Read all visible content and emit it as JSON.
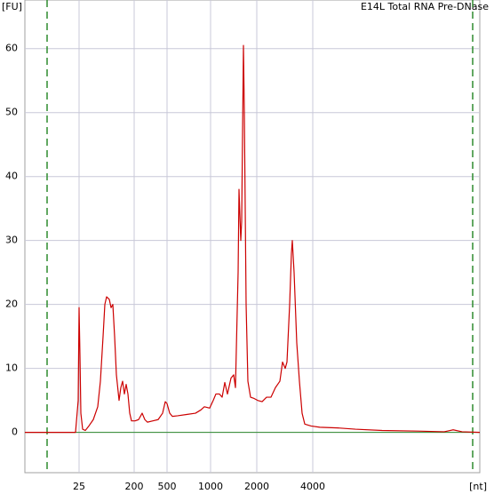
{
  "chart_data": {
    "type": "line",
    "title": "E14L Total RNA Pre-DNase",
    "ylabel": "[FU]",
    "xlabel": "[nt]",
    "xlim": [
      16.4,
      67.6
    ],
    "ylim": [
      -6.3,
      67.6
    ],
    "yticks": [
      0,
      10,
      20,
      30,
      40,
      50,
      60
    ],
    "xticks": [
      {
        "value": 22.5,
        "label": "25"
      },
      {
        "value": 28.7,
        "label": "200"
      },
      {
        "value": 32.4,
        "label": "500"
      },
      {
        "value": 37.3,
        "label": "1000"
      },
      {
        "value": 42.5,
        "label": "2000"
      },
      {
        "value": 48.8,
        "label": "4000"
      }
    ],
    "grid": true,
    "markers": [
      18.9,
      66.8
    ],
    "marker_color": "#2e8b2e",
    "x": [
      16.4,
      22.1,
      22.4,
      22.5,
      22.6,
      22.7,
      22.9,
      23.2,
      23.6,
      24.1,
      24.6,
      24.9,
      25.2,
      25.4,
      25.6,
      25.9,
      26.1,
      26.3,
      26.5,
      26.7,
      27.0,
      27.2,
      27.4,
      27.6,
      27.8,
      28.0,
      28.2,
      28.4,
      28.8,
      29.2,
      29.6,
      29.9,
      30.2,
      30.8,
      31.4,
      31.9,
      32.2,
      32.4,
      32.7,
      33.0,
      33.6,
      34.6,
      35.6,
      36.2,
      36.6,
      37.2,
      37.6,
      37.9,
      38.3,
      38.6,
      38.9,
      39.2,
      39.6,
      39.9,
      40.1,
      40.4,
      40.5,
      40.7,
      40.8,
      41.0,
      41.1,
      41.3,
      41.5,
      41.8,
      42.2,
      42.6,
      43.1,
      43.6,
      44.1,
      44.6,
      45.1,
      45.4,
      45.7,
      45.9,
      46.2,
      46.4,
      46.5,
      46.7,
      47.0,
      47.3,
      47.6,
      47.9,
      48.6,
      49.6,
      51.6,
      53.6,
      56.6,
      60.6,
      63.6,
      64.6,
      65.6,
      67.6
    ],
    "series": [
      {
        "color": "#cc0000",
        "values": [
          0,
          0,
          5,
          19.5,
          12,
          3,
          0.5,
          0.3,
          1,
          2,
          4,
          8,
          15,
          20,
          21.2,
          20.8,
          19.5,
          20,
          15,
          9,
          5,
          7,
          8,
          6,
          7.5,
          6,
          3,
          1.8,
          1.8,
          2,
          3,
          2,
          1.6,
          1.8,
          2,
          3,
          4.8,
          4.5,
          3,
          2.5,
          2.6,
          2.8,
          3,
          3.5,
          4,
          3.8,
          5,
          6,
          6,
          5.5,
          7.8,
          6,
          8.5,
          9,
          7,
          25,
          38,
          30,
          33,
          60.5,
          50,
          20,
          8,
          5.5,
          5.3,
          5,
          4.8,
          5.5,
          5.5,
          7,
          8,
          11,
          10,
          11,
          20,
          28,
          30,
          25,
          14,
          8,
          3,
          1.3,
          1,
          0.8,
          0.7,
          0.5,
          0.3,
          0.2,
          0.1,
          0.4,
          0.1,
          0
        ]
      }
    ]
  }
}
